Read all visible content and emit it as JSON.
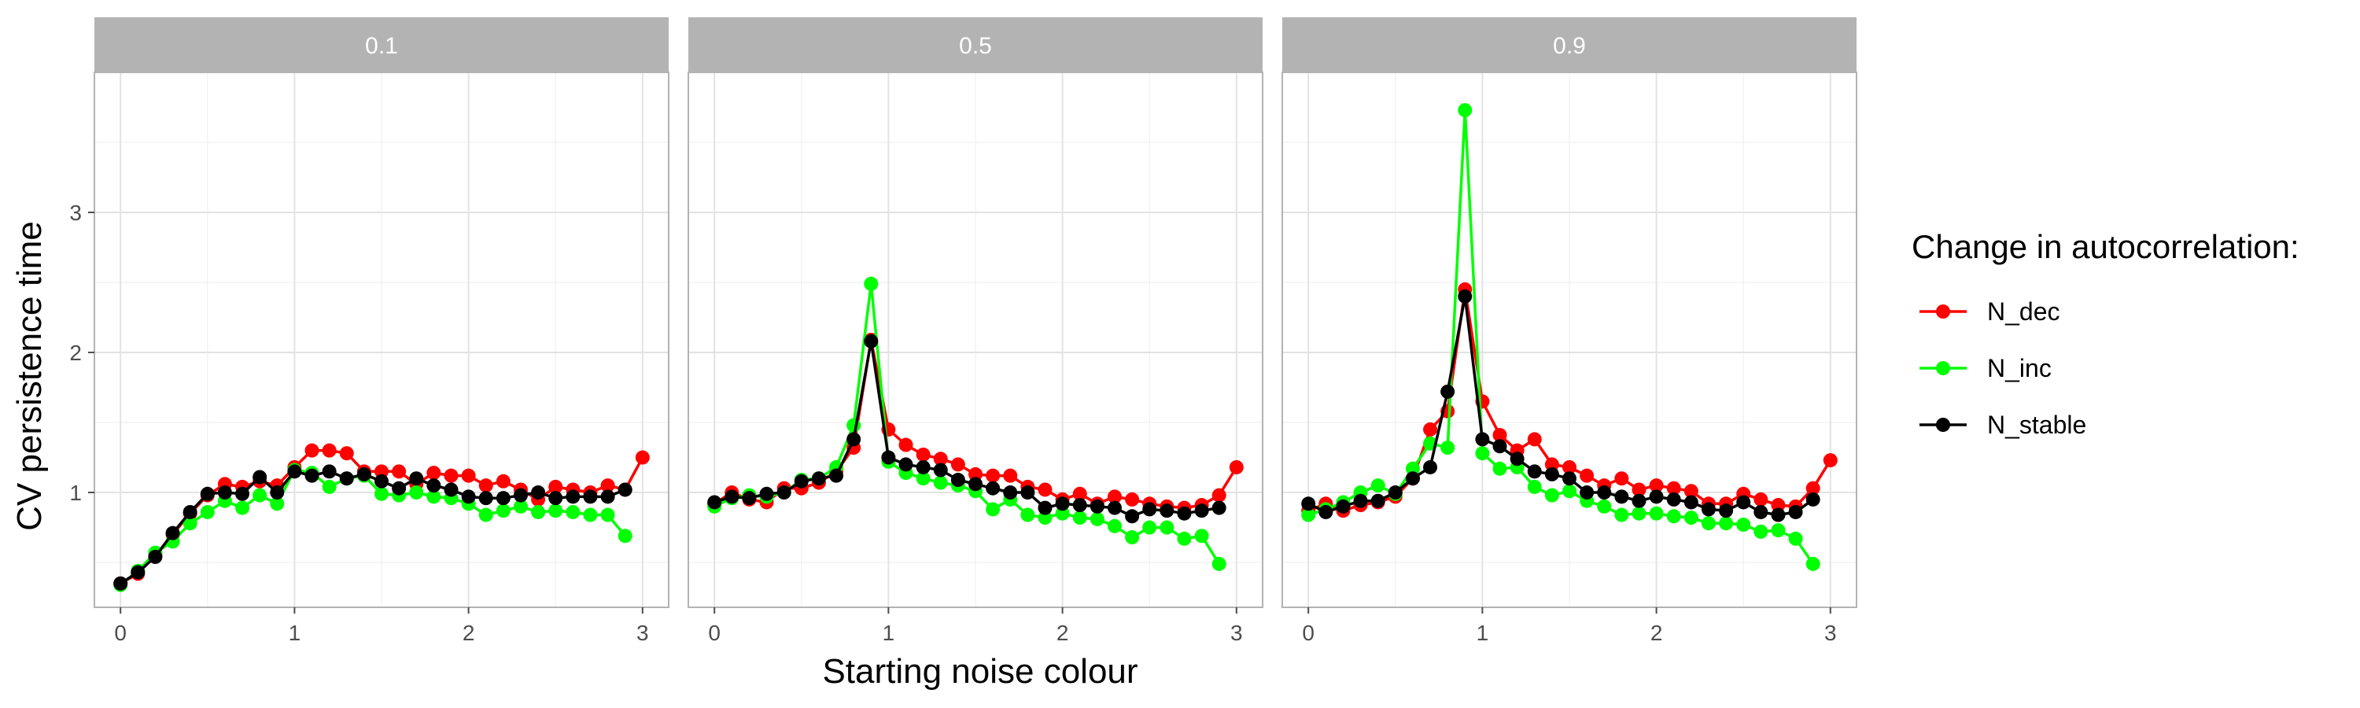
{
  "chart_data": {
    "type": "line",
    "facet_label_key": "facet",
    "xlabel": "Starting noise colour",
    "ylabel": "CV persistence time",
    "xlim": [
      -0.15,
      3.15
    ],
    "ylim": [
      0.18,
      4.0
    ],
    "x_ticks": [
      0,
      1,
      2,
      3
    ],
    "y_ticks": [
      1,
      2,
      3
    ],
    "grid": true,
    "legend": {
      "title": "Change in autocorrelation:",
      "placement": "right",
      "entries": [
        "N_dec",
        "N_inc",
        "N_stable"
      ]
    },
    "colors": {
      "N_dec": "#ff0000",
      "N_inc": "#00ff00",
      "N_stable": "#000000"
    },
    "panels": [
      {
        "facet": "0.1",
        "series": [
          {
            "name": "N_dec",
            "x": [
              0,
              0.1,
              0.2,
              0.3,
              0.4,
              0.5,
              0.6,
              0.7,
              0.8,
              0.9,
              1.0,
              1.1,
              1.2,
              1.3,
              1.4,
              1.5,
              1.6,
              1.7,
              1.8,
              1.9,
              2.0,
              2.1,
              2.2,
              2.3,
              2.4,
              2.5,
              2.6,
              2.7,
              2.8,
              2.9,
              3.0
            ],
            "y": [
              0.35,
              0.42,
              0.55,
              0.7,
              0.85,
              0.98,
              1.06,
              1.04,
              1.08,
              1.05,
              1.18,
              1.3,
              1.3,
              1.28,
              1.15,
              1.15,
              1.15,
              1.06,
              1.14,
              1.12,
              1.12,
              1.05,
              1.08,
              1.02,
              0.95,
              1.04,
              1.02,
              1.0,
              1.05,
              1.02,
              1.25
            ]
          },
          {
            "name": "N_inc",
            "x": [
              0,
              0.1,
              0.2,
              0.3,
              0.4,
              0.5,
              0.6,
              0.7,
              0.8,
              0.9,
              1.0,
              1.1,
              1.2,
              1.3,
              1.4,
              1.5,
              1.6,
              1.7,
              1.8,
              1.9,
              2.0,
              2.1,
              2.2,
              2.3,
              2.4,
              2.5,
              2.6,
              2.7,
              2.8,
              2.9
            ],
            "y": [
              0.34,
              0.44,
              0.57,
              0.65,
              0.78,
              0.86,
              0.94,
              0.89,
              0.98,
              0.92,
              1.16,
              1.14,
              1.04,
              1.1,
              1.12,
              0.99,
              0.98,
              1.0,
              0.97,
              0.96,
              0.92,
              0.84,
              0.87,
              0.9,
              0.86,
              0.87,
              0.86,
              0.84,
              0.84,
              0.69
            ]
          },
          {
            "name": "N_stable",
            "x": [
              0,
              0.1,
              0.2,
              0.3,
              0.4,
              0.5,
              0.6,
              0.7,
              0.8,
              0.9,
              1.0,
              1.1,
              1.2,
              1.3,
              1.4,
              1.5,
              1.6,
              1.7,
              1.8,
              1.9,
              2.0,
              2.1,
              2.2,
              2.3,
              2.4,
              2.5,
              2.6,
              2.7,
              2.8,
              2.9
            ],
            "y": [
              0.35,
              0.43,
              0.54,
              0.71,
              0.86,
              0.99,
              1.0,
              0.99,
              1.11,
              1.0,
              1.15,
              1.12,
              1.15,
              1.1,
              1.13,
              1.08,
              1.03,
              1.1,
              1.05,
              1.02,
              0.97,
              0.96,
              0.96,
              0.98,
              1.0,
              0.96,
              0.97,
              0.97,
              0.97,
              1.02
            ]
          }
        ]
      },
      {
        "facet": "0.5",
        "series": [
          {
            "name": "N_dec",
            "x": [
              0,
              0.1,
              0.2,
              0.3,
              0.4,
              0.5,
              0.6,
              0.7,
              0.8,
              0.9,
              1.0,
              1.1,
              1.2,
              1.3,
              1.4,
              1.5,
              1.6,
              1.7,
              1.8,
              1.9,
              2.0,
              2.1,
              2.2,
              2.3,
              2.4,
              2.5,
              2.6,
              2.7,
              2.8,
              2.9,
              3.0
            ],
            "y": [
              0.92,
              1.0,
              0.95,
              0.93,
              1.03,
              1.03,
              1.07,
              1.15,
              1.32,
              2.09,
              1.45,
              1.34,
              1.27,
              1.24,
              1.2,
              1.13,
              1.12,
              1.12,
              1.04,
              1.02,
              0.95,
              0.99,
              0.92,
              0.97,
              0.95,
              0.92,
              0.9,
              0.89,
              0.91,
              0.98,
              1.18
            ]
          },
          {
            "name": "N_inc",
            "x": [
              0,
              0.1,
              0.2,
              0.3,
              0.4,
              0.5,
              0.6,
              0.7,
              0.8,
              0.9,
              1.0,
              1.1,
              1.2,
              1.3,
              1.4,
              1.5,
              1.6,
              1.7,
              1.8,
              1.9,
              2.0,
              2.1,
              2.2,
              2.3,
              2.4,
              2.5,
              2.6,
              2.7,
              2.8,
              2.9
            ],
            "y": [
              0.9,
              0.96,
              0.98,
              0.97,
              1.0,
              1.09,
              1.1,
              1.18,
              1.48,
              2.49,
              1.22,
              1.14,
              1.1,
              1.07,
              1.05,
              1.01,
              0.88,
              0.95,
              0.84,
              0.82,
              0.85,
              0.82,
              0.81,
              0.76,
              0.68,
              0.75,
              0.75,
              0.67,
              0.69,
              0.49
            ]
          },
          {
            "name": "N_stable",
            "x": [
              0,
              0.1,
              0.2,
              0.3,
              0.4,
              0.5,
              0.6,
              0.7,
              0.8,
              0.9,
              1.0,
              1.1,
              1.2,
              1.3,
              1.4,
              1.5,
              1.6,
              1.7,
              1.8,
              1.9,
              2.0,
              2.1,
              2.2,
              2.3,
              2.4,
              2.5,
              2.6,
              2.7,
              2.8,
              2.9
            ],
            "y": [
              0.93,
              0.97,
              0.96,
              0.99,
              1.0,
              1.08,
              1.1,
              1.12,
              1.38,
              2.08,
              1.25,
              1.2,
              1.18,
              1.16,
              1.09,
              1.06,
              1.03,
              1.0,
              1.0,
              0.89,
              0.92,
              0.91,
              0.9,
              0.89,
              0.83,
              0.88,
              0.87,
              0.85,
              0.87,
              0.89
            ]
          }
        ]
      },
      {
        "facet": "0.9",
        "series": [
          {
            "name": "N_dec",
            "x": [
              0,
              0.1,
              0.2,
              0.3,
              0.4,
              0.5,
              0.6,
              0.7,
              0.8,
              0.9,
              1.0,
              1.1,
              1.2,
              1.3,
              1.4,
              1.5,
              1.6,
              1.7,
              1.8,
              1.9,
              2.0,
              2.1,
              2.2,
              2.3,
              2.4,
              2.5,
              2.6,
              2.7,
              2.8,
              2.9,
              3.0
            ],
            "y": [
              0.87,
              0.92,
              0.87,
              0.91,
              0.93,
              0.97,
              1.1,
              1.45,
              1.58,
              2.45,
              1.65,
              1.41,
              1.3,
              1.38,
              1.2,
              1.18,
              1.12,
              1.05,
              1.1,
              1.02,
              1.05,
              1.03,
              1.01,
              0.92,
              0.92,
              0.99,
              0.95,
              0.91,
              0.9,
              1.03,
              1.23
            ]
          },
          {
            "name": "N_inc",
            "x": [
              0,
              0.1,
              0.2,
              0.3,
              0.4,
              0.5,
              0.6,
              0.7,
              0.8,
              0.9,
              1.0,
              1.1,
              1.2,
              1.3,
              1.4,
              1.5,
              1.6,
              1.7,
              1.8,
              1.9,
              2.0,
              2.1,
              2.2,
              2.3,
              2.4,
              2.5,
              2.6,
              2.7,
              2.8,
              2.9
            ],
            "y": [
              0.84,
              0.88,
              0.93,
              1.0,
              1.05,
              0.99,
              1.17,
              1.35,
              1.32,
              3.73,
              1.28,
              1.17,
              1.18,
              1.04,
              0.98,
              1.01,
              0.94,
              0.9,
              0.84,
              0.85,
              0.85,
              0.83,
              0.82,
              0.78,
              0.78,
              0.77,
              0.72,
              0.73,
              0.67,
              0.49
            ]
          },
          {
            "name": "N_stable",
            "x": [
              0,
              0.1,
              0.2,
              0.3,
              0.4,
              0.5,
              0.6,
              0.7,
              0.8,
              0.9,
              1.0,
              1.1,
              1.2,
              1.3,
              1.4,
              1.5,
              1.6,
              1.7,
              1.8,
              1.9,
              2.0,
              2.1,
              2.2,
              2.3,
              2.4,
              2.5,
              2.6,
              2.7,
              2.8,
              2.9
            ],
            "y": [
              0.92,
              0.86,
              0.9,
              0.94,
              0.94,
              1.0,
              1.1,
              1.18,
              1.72,
              2.4,
              1.38,
              1.33,
              1.24,
              1.15,
              1.13,
              1.1,
              1.0,
              1.0,
              0.97,
              0.94,
              0.97,
              0.95,
              0.93,
              0.88,
              0.87,
              0.93,
              0.86,
              0.84,
              0.86,
              0.95
            ]
          }
        ]
      }
    ]
  }
}
